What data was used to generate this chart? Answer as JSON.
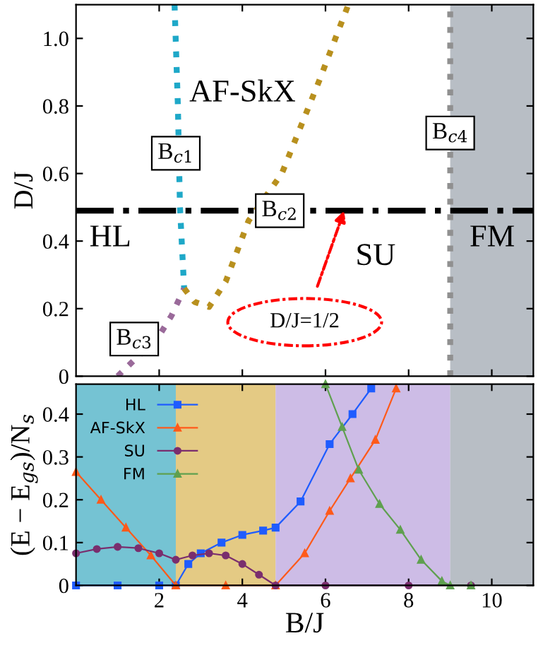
{
  "chart_data": [
    {
      "type": "line",
      "ylabel": "D/J",
      "xlim": [
        0,
        11
      ],
      "ylim": [
        0,
        1.1
      ],
      "xticks": [
        {
          "value": 2,
          "label": null
        },
        {
          "value": 4,
          "label": null
        },
        {
          "value": 6,
          "label": null
        },
        {
          "value": 8,
          "label": null
        },
        {
          "value": 10,
          "label": null
        }
      ],
      "yticks": [
        0,
        0.2,
        0.4,
        0.6,
        0.8,
        {
          "value": 1,
          "label": "1.0"
        }
      ],
      "tick_labels": "y",
      "line_style": "dotted",
      "marker": "none",
      "series": [
        {
          "color": "#1ea8c8",
          "x": [
            2.37,
            2.45,
            2.5,
            2.6
          ],
          "values": [
            1.1,
            0.8,
            0.5,
            0.26
          ]
        },
        {
          "color": "#9a6a9a",
          "x": [
            1.0,
            1.45,
            2.0,
            2.3,
            2.6
          ],
          "values": [
            0,
            0.054,
            0.12,
            0.18,
            0.26
          ]
        },
        {
          "color": "#b8901e",
          "x": [
            2.6,
            2.85,
            3.2,
            3.6,
            4.15,
            4.95,
            5.85,
            6.55
          ],
          "values": [
            0.26,
            0.22,
            0.205,
            0.28,
            0.46,
            0.6,
            0.875,
            1.1
          ]
        },
        {
          "color": "#909090",
          "x": [
            9,
            9
          ],
          "values": [
            0,
            1.1
          ]
        }
      ],
      "bands": [
        {
          "axis": "x",
          "from": 9,
          "to": 11,
          "color": "#9aa2ad"
        }
      ],
      "ref_lines": [
        {
          "axis": "y",
          "value": 0.49,
          "color": "#000000",
          "line_style": "dashdot"
        }
      ],
      "annotations": [
        "HL",
        "AF-SkX",
        "SU",
        "FM",
        {
          "text": "B$_{c1}$",
          "x": 2.4,
          "y": 0.66
        },
        {
          "text": "B$_{c2}$",
          "x": 4.9,
          "y": 0.49
        },
        {
          "text": "B$_{c3}$",
          "x": 1.4,
          "y": 0.11
        },
        {
          "text": "B$_{c4}$",
          "x": 9.0,
          "y": 0.72
        },
        {
          "text": "D/J=1/2",
          "x": 6.45,
          "y": 0.49
        }
      ]
    },
    {
      "type": "line",
      "xlabel": "B/J",
      "ylabel": "(E − E$_{gs}$)/N$_{s}$",
      "xlim": [
        0,
        11
      ],
      "ylim": [
        0,
        0.47
      ],
      "xticks": [
        2,
        4,
        6,
        8,
        10
      ],
      "yticks": [
        0,
        0.1,
        0.2,
        0.3,
        0.4
      ],
      "legend": "top left",
      "line_style": "solid",
      "bands": [
        {
          "axis": "x",
          "from": 0,
          "to": 2.4,
          "color": "#3aa9c0"
        },
        {
          "axis": "x",
          "from": 2.4,
          "to": 4.8,
          "color": "#d8b450"
        },
        {
          "axis": "x",
          "from": 4.8,
          "to": 9,
          "color": "#b8a0dc"
        },
        {
          "axis": "x",
          "from": 9,
          "to": 11,
          "color": "#9aa2ad"
        }
      ],
      "series": [
        {
          "name": "HL",
          "color": "#1f5cff",
          "marker": "square",
          "x": [
            0,
            1,
            2,
            2.4,
            2.7,
            3.0,
            3.5,
            4.0,
            4.5,
            4.8,
            5.4,
            6.1,
            6.65,
            7.1
          ],
          "values": [
            0,
            0,
            0,
            0,
            0.05,
            0.075,
            0.1,
            0.118,
            0.128,
            0.135,
            0.196,
            0.33,
            0.4,
            0.46
          ]
        },
        {
          "name": "AF-SkX",
          "color": "#ff5a1a",
          "marker": "triangle",
          "x": [
            0,
            0.6,
            1.2,
            1.8,
            2.4,
            3.6,
            4.8,
            5.5,
            6.1,
            6.6,
            7.2,
            7.7
          ],
          "values": [
            0.265,
            0.2,
            0.135,
            0.07,
            0,
            0,
            0,
            0.075,
            0.174,
            0.25,
            0.34,
            0.46
          ]
        },
        {
          "name": "SU",
          "color": "#7a2e6e",
          "marker": "circle",
          "x": [
            0,
            0.5,
            1,
            1.5,
            2,
            2.4,
            2.8,
            3.2,
            3.6,
            4.0,
            4.4,
            4.8,
            6,
            8,
            9.5
          ],
          "values": [
            0.075,
            0.085,
            0.09,
            0.087,
            0.075,
            0.06,
            0.07,
            0.075,
            0.07,
            0.05,
            0.025,
            0,
            0,
            0,
            0
          ]
        },
        {
          "name": "FM",
          "color": "#5fa04f",
          "marker": "triangle",
          "x": [
            6.0,
            6.4,
            6.8,
            7.3,
            7.8,
            8.3,
            8.8,
            9.0,
            9.5
          ],
          "values": [
            0.47,
            0.37,
            0.27,
            0.19,
            0.13,
            0.06,
            0.01,
            0,
            0
          ]
        }
      ]
    }
  ]
}
